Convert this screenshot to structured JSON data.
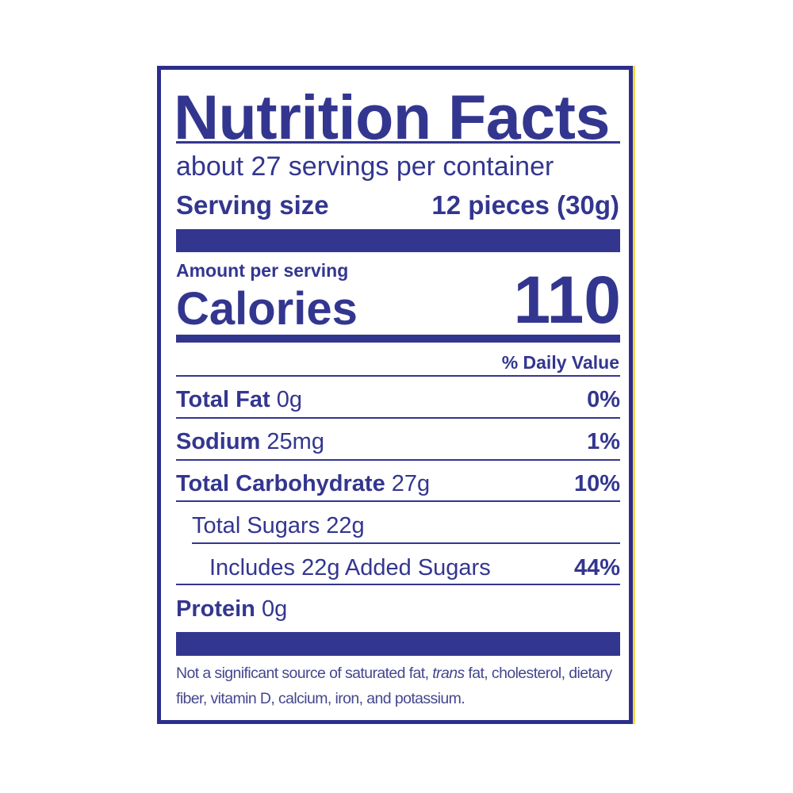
{
  "title": "Nutrition Facts",
  "servings_per_container": "about 27 servings per container",
  "serving_size": {
    "label": "Serving size",
    "value": "12 pieces (30g)"
  },
  "amount_per_serving": "Amount per serving",
  "calories": {
    "label": "Calories",
    "value": "110"
  },
  "daily_value_header": "% Daily Value",
  "nutrients": [
    {
      "name": "Total Fat",
      "amount": "0g",
      "dv": "0%"
    },
    {
      "name": "Sodium",
      "amount": "25mg",
      "dv": "1%"
    },
    {
      "name": "Total Carbohydrate",
      "amount": "27g",
      "dv": "10%"
    },
    {
      "name": "Total Sugars 22g",
      "amount": "",
      "dv": ""
    },
    {
      "name": "Includes 22g Added Sugars",
      "amount": "",
      "dv": "44%"
    },
    {
      "name": "Protein",
      "amount": "0g",
      "dv": ""
    }
  ],
  "footnote": {
    "before": "Not a significant source of saturated fat, ",
    "italic": "trans",
    "after": " fat, cholesterol, dietary fiber, vitamin D, calcium, iron, and potassium."
  },
  "colors": {
    "ink": "#33368f",
    "border": "#2b2e8c",
    "accent_edge": "#f2d84a"
  }
}
